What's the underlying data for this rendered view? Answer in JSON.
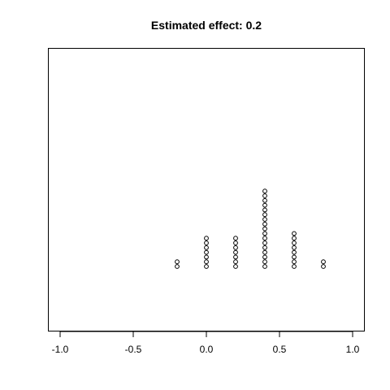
{
  "chart_data": {
    "type": "scatter",
    "title": "Estimated effect: 0.2",
    "xlabel": "",
    "ylabel": "",
    "xlim": [
      -1.0,
      1.0
    ],
    "grid": false,
    "legend": "none",
    "x_ticks": [
      -1.0,
      -0.5,
      0.0,
      0.5,
      1.0
    ],
    "x_tick_labels": [
      "-1.0",
      "-0.5",
      "0.0",
      "0.5",
      "1.0"
    ],
    "stacks": [
      {
        "x": -0.2,
        "count": 2
      },
      {
        "x": 0.0,
        "count": 7
      },
      {
        "x": 0.2,
        "count": 7
      },
      {
        "x": 0.4,
        "count": 17
      },
      {
        "x": 0.6,
        "count": 8
      },
      {
        "x": 0.8,
        "count": 2
      }
    ],
    "marker": "open-circle",
    "colors": {
      "points": "#000000",
      "axes": "#000000"
    }
  }
}
